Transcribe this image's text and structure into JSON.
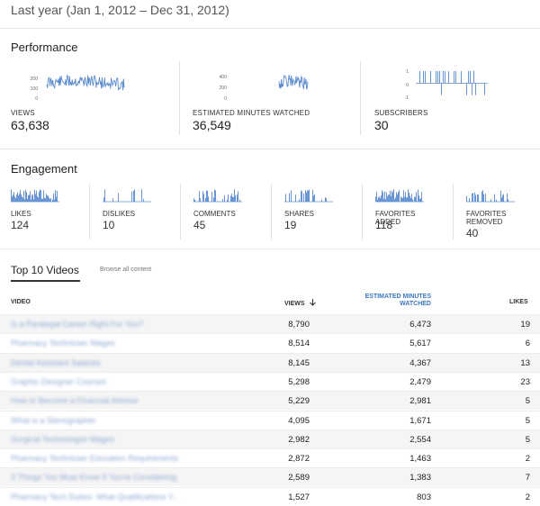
{
  "date_range": "Last year (Jan 1, 2012 – Dec 31, 2012)",
  "accent_color": "#5b8bd0",
  "performance": {
    "title": "Performance",
    "metrics": [
      {
        "label": "VIEWS",
        "value": "63,638",
        "ticks": [
          "200",
          "100",
          "0"
        ]
      },
      {
        "label": "ESTIMATED MINUTES WATCHED",
        "value": "36,549",
        "ticks": [
          "400",
          "200",
          "0"
        ]
      },
      {
        "label": "SUBSCRIBERS",
        "value": "30",
        "ticks": [
          "1",
          "0",
          "-1"
        ]
      }
    ]
  },
  "engagement": {
    "title": "Engagement",
    "metrics": [
      {
        "label": "LIKES",
        "value": "124"
      },
      {
        "label": "DISLIKES",
        "value": "10"
      },
      {
        "label": "COMMENTS",
        "value": "45"
      },
      {
        "label": "SHARES",
        "value": "19"
      },
      {
        "label": "FAVORITES ADDED",
        "value": "118"
      },
      {
        "label": "FAVORITES REMOVED",
        "value": "40"
      }
    ]
  },
  "top_videos": {
    "tab_label": "Top 10 Videos",
    "browse_link": "Browse all content",
    "columns": {
      "video": "VIDEO",
      "views": "VIEWS",
      "sort_icon": "arrow-down-icon",
      "minutes": "ESTIMATED MINUTES WATCHED",
      "likes": "LIKES"
    },
    "rows": [
      {
        "title": "Is a Paralegal Career Right For You?",
        "views": "8,790",
        "minutes": "6,473",
        "likes": "19"
      },
      {
        "title": "Pharmacy Technician Wages",
        "views": "8,514",
        "minutes": "5,617",
        "likes": "6"
      },
      {
        "title": "Dental Assistant Salaries",
        "views": "8,145",
        "minutes": "4,367",
        "likes": "13"
      },
      {
        "title": "Graphic Designer Courses",
        "views": "5,298",
        "minutes": "2,479",
        "likes": "23"
      },
      {
        "title": "How to Become a Financial Advisor",
        "views": "5,229",
        "minutes": "2,981",
        "likes": "5"
      },
      {
        "title": "What is a Stenographer",
        "views": "4,095",
        "minutes": "1,671",
        "likes": "5"
      },
      {
        "title": "Surgical Technologist Wages",
        "views": "2,982",
        "minutes": "2,554",
        "likes": "5"
      },
      {
        "title": "Pharmacy Technician Education Requirements",
        "views": "2,872",
        "minutes": "1,463",
        "likes": "2"
      },
      {
        "title": "3 Things You Must Know If You're Considering",
        "views": "2,589",
        "minutes": "1,383",
        "likes": "7"
      },
      {
        "title": "Pharmacy Tech Duties: What Qualifications Y...",
        "views": "1,527",
        "minutes": "803",
        "likes": "2"
      }
    ]
  }
}
